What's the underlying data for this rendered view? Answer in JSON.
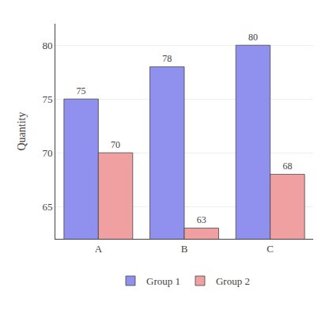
{
  "chart_data": {
    "type": "bar",
    "categories": [
      "A",
      "B",
      "C"
    ],
    "series": [
      {
        "name": "Group 1",
        "color": "#9090ee",
        "values": [
          75,
          78,
          80
        ]
      },
      {
        "name": "Group 2",
        "color": "#f0a0a0",
        "values": [
          70,
          63,
          68
        ]
      }
    ],
    "ylabel": "Quantity",
    "ylim": [
      62,
      82
    ],
    "yticks": [
      65,
      70,
      75,
      80
    ],
    "grid": true,
    "data_labels": true,
    "legend": "bottom"
  }
}
